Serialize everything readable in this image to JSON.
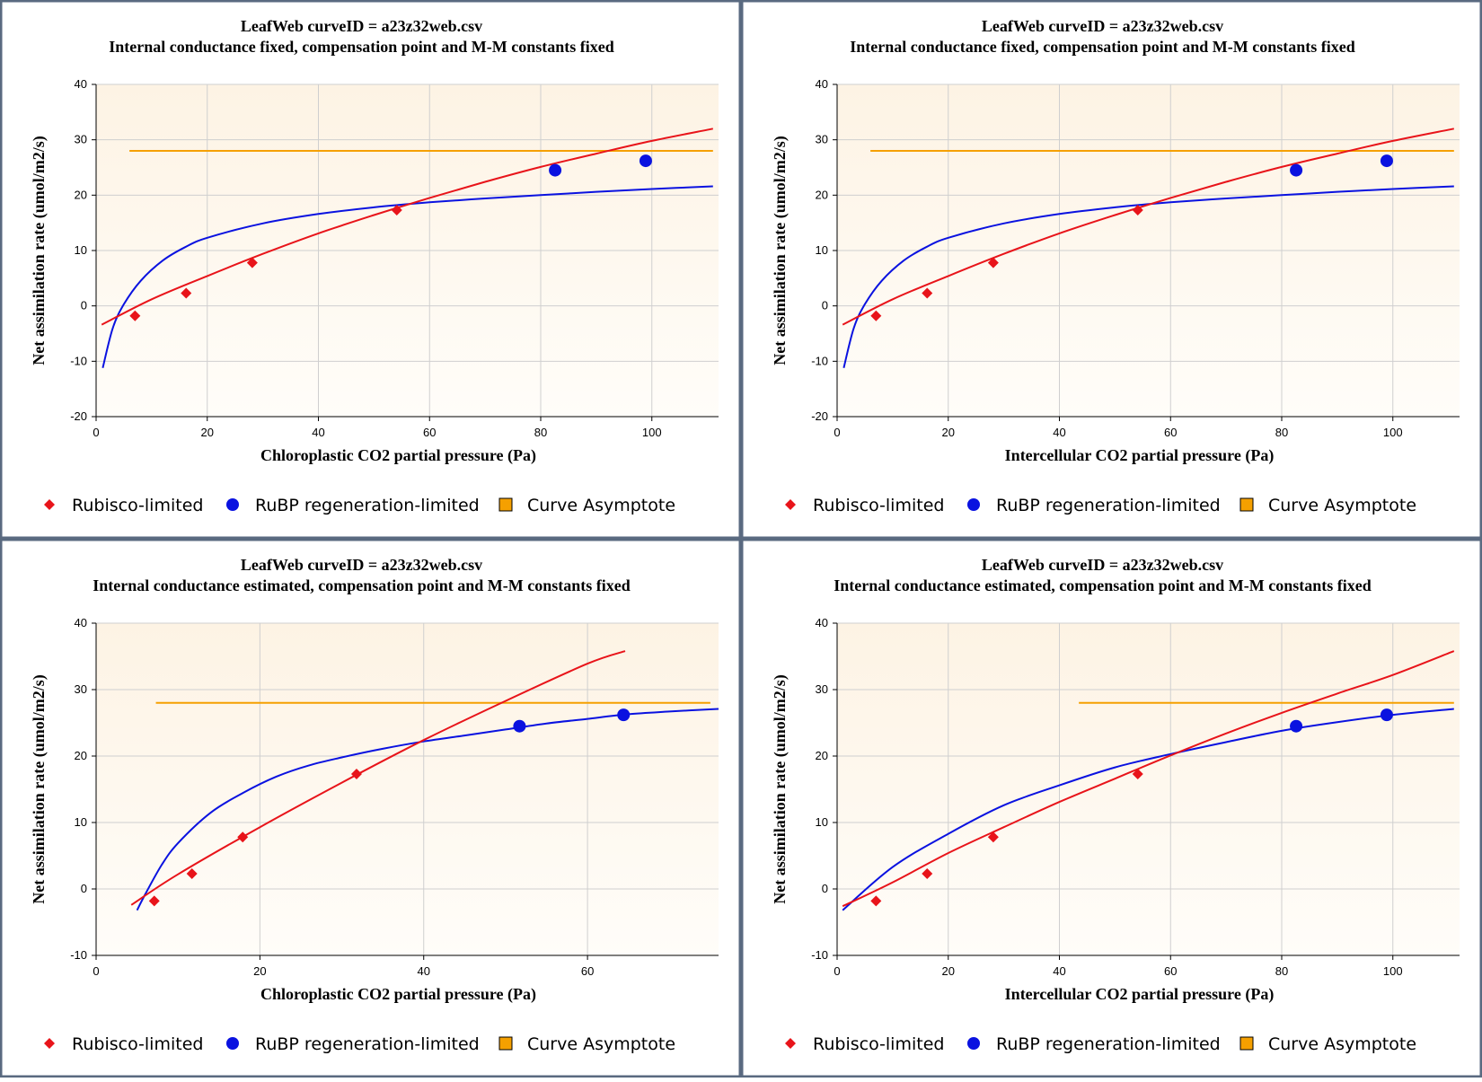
{
  "colors": {
    "border": "#5a6a80",
    "plot_bg_top": "#fdf3e4",
    "plot_bg_bottom": "#fffdf9",
    "grid": "#cfcfcf",
    "rubisco": "#e8141a",
    "rubp": "#0a12e0",
    "asymptote": "#f5a000"
  },
  "legend": {
    "rubisco": "Rubisco-limited",
    "rubp": "RuBP regeneration-limited",
    "asymptote": "Curve Asymptote"
  },
  "chart_data": [
    {
      "type": "scatter",
      "title": "LeafWeb curveID = a23z32web.csv",
      "subtitle": "Internal conductance fixed, compensation point and M-M constants fixed",
      "xlabel": "Chloroplastic CO2 partial pressure (Pa)",
      "ylabel": "Net assimilation rate (umol/m2/s)",
      "xlim": [
        0,
        112
      ],
      "ylim": [
        -20,
        40
      ],
      "xticks": [
        0,
        20,
        40,
        60,
        80,
        100
      ],
      "yticks": [
        -20,
        -10,
        0,
        10,
        20,
        30,
        40
      ],
      "rubisco_points": [
        [
          7,
          -1.8
        ],
        [
          16.2,
          2.3
        ],
        [
          28.1,
          7.8
        ],
        [
          54.1,
          17.3
        ]
      ],
      "rubp_points": [
        [
          82.6,
          24.5
        ],
        [
          98.9,
          26.2
        ]
      ],
      "rubisco_curve": [
        [
          1,
          -3.4
        ],
        [
          10,
          1.2
        ],
        [
          20,
          5.4
        ],
        [
          30,
          9.4
        ],
        [
          40,
          13.1
        ],
        [
          50,
          16.4
        ],
        [
          60,
          19.5
        ],
        [
          70,
          22.4
        ],
        [
          80,
          25.1
        ],
        [
          90,
          27.5
        ],
        [
          100,
          29.8
        ],
        [
          111,
          32.0
        ]
      ],
      "rubp_curve": [
        [
          1.2,
          -11.2
        ],
        [
          3,
          -4
        ],
        [
          5,
          0.3
        ],
        [
          8,
          4.5
        ],
        [
          12,
          8.2
        ],
        [
          16,
          10.6
        ],
        [
          20,
          12.3
        ],
        [
          30,
          14.9
        ],
        [
          40,
          16.6
        ],
        [
          50,
          17.8
        ],
        [
          60,
          18.7
        ],
        [
          70,
          19.4
        ],
        [
          80,
          20.0
        ],
        [
          90,
          20.6
        ],
        [
          100,
          21.1
        ],
        [
          111,
          21.6
        ]
      ],
      "asymptote": {
        "x": [
          6,
          111
        ],
        "y": 28
      }
    },
    {
      "type": "scatter",
      "title": "LeafWeb curveID = a23z32web.csv",
      "subtitle": "Internal conductance fixed, compensation point and M-M constants fixed",
      "xlabel": "Intercellular CO2 partial pressure (Pa)",
      "ylabel": "Net assimilation rate (umol/m2/s)",
      "xlim": [
        0,
        112
      ],
      "ylim": [
        -20,
        40
      ],
      "xticks": [
        0,
        20,
        40,
        60,
        80,
        100
      ],
      "yticks": [
        -20,
        -10,
        0,
        10,
        20,
        30,
        40
      ],
      "rubisco_points": [
        [
          7,
          -1.8
        ],
        [
          16.2,
          2.3
        ],
        [
          28.1,
          7.8
        ],
        [
          54.1,
          17.3
        ]
      ],
      "rubp_points": [
        [
          82.6,
          24.5
        ],
        [
          98.9,
          26.2
        ]
      ],
      "rubisco_curve": [
        [
          1,
          -3.4
        ],
        [
          10,
          1.2
        ],
        [
          20,
          5.4
        ],
        [
          30,
          9.4
        ],
        [
          40,
          13.1
        ],
        [
          50,
          16.4
        ],
        [
          60,
          19.5
        ],
        [
          70,
          22.4
        ],
        [
          80,
          25.1
        ],
        [
          90,
          27.5
        ],
        [
          100,
          29.8
        ],
        [
          111,
          32.0
        ]
      ],
      "rubp_curve": [
        [
          1.2,
          -11.2
        ],
        [
          3,
          -4
        ],
        [
          5,
          0.3
        ],
        [
          8,
          4.5
        ],
        [
          12,
          8.2
        ],
        [
          16,
          10.6
        ],
        [
          20,
          12.3
        ],
        [
          30,
          14.9
        ],
        [
          40,
          16.6
        ],
        [
          50,
          17.8
        ],
        [
          60,
          18.7
        ],
        [
          70,
          19.4
        ],
        [
          80,
          20.0
        ],
        [
          90,
          20.6
        ],
        [
          100,
          21.1
        ],
        [
          111,
          21.6
        ]
      ],
      "asymptote": {
        "x": [
          6,
          111
        ],
        "y": 28
      }
    },
    {
      "type": "scatter",
      "title": "LeafWeb curveID = a23z32web.csv",
      "subtitle": "Internal conductance estimated, compensation point and M-M constants fixed",
      "xlabel": "Chloroplastic CO2 partial pressure (Pa)",
      "ylabel": "Net assimilation rate (umol/m2/s)",
      "xlim": [
        0,
        76
      ],
      "ylim": [
        -10,
        40
      ],
      "xticks": [
        0,
        20,
        40,
        60
      ],
      "yticks": [
        -10,
        0,
        10,
        20,
        30,
        40
      ],
      "rubisco_points": [
        [
          7.1,
          -1.8
        ],
        [
          11.7,
          2.3
        ],
        [
          17.9,
          7.8
        ],
        [
          31.8,
          17.3
        ]
      ],
      "rubp_points": [
        [
          51.7,
          24.5
        ],
        [
          64.4,
          26.2
        ]
      ],
      "rubisco_curve": [
        [
          4.3,
          -2.4
        ],
        [
          10,
          2.2
        ],
        [
          20,
          9.3
        ],
        [
          30,
          16.0
        ],
        [
          40,
          22.4
        ],
        [
          50,
          28.3
        ],
        [
          60,
          33.9
        ],
        [
          64.6,
          35.8
        ]
      ],
      "rubp_curve": [
        [
          5,
          -3.2
        ],
        [
          6,
          -0.8
        ],
        [
          8,
          3.6
        ],
        [
          10,
          6.9
        ],
        [
          14,
          11.5
        ],
        [
          18,
          14.5
        ],
        [
          22,
          16.9
        ],
        [
          26,
          18.6
        ],
        [
          30,
          19.8
        ],
        [
          35,
          21.1
        ],
        [
          40,
          22.2
        ],
        [
          45,
          23.1
        ],
        [
          50,
          24.0
        ],
        [
          55,
          24.9
        ],
        [
          60,
          25.6
        ],
        [
          65,
          26.3
        ],
        [
          70,
          26.7
        ],
        [
          76,
          27.1
        ]
      ],
      "asymptote": {
        "x": [
          7.3,
          75
        ],
        "y": 28
      }
    },
    {
      "type": "scatter",
      "title": "LeafWeb curveID = a23z32web.csv",
      "subtitle": "Internal conductance estimated, compensation point and M-M constants fixed",
      "xlabel": "Intercellular CO2 partial pressure (Pa)",
      "ylabel": "Net assimilation rate (umol/m2/s)",
      "xlim": [
        0,
        112
      ],
      "ylim": [
        -10,
        40
      ],
      "xticks": [
        0,
        20,
        40,
        60,
        80,
        100
      ],
      "yticks": [
        -10,
        0,
        10,
        20,
        30,
        40
      ],
      "rubisco_points": [
        [
          7,
          -1.8
        ],
        [
          16.2,
          2.3
        ],
        [
          28.1,
          7.8
        ],
        [
          54.1,
          17.3
        ]
      ],
      "rubp_points": [
        [
          82.6,
          24.5
        ],
        [
          98.9,
          26.2
        ]
      ],
      "rubisco_curve": [
        [
          1,
          -2.6
        ],
        [
          10,
          1.0
        ],
        [
          20,
          5.4
        ],
        [
          30,
          9.3
        ],
        [
          40,
          13.1
        ],
        [
          50,
          16.6
        ],
        [
          60,
          20.1
        ],
        [
          70,
          23.4
        ],
        [
          80,
          26.5
        ],
        [
          90,
          29.4
        ],
        [
          100,
          32.2
        ],
        [
          111,
          35.8
        ]
      ],
      "rubp_curve": [
        [
          1,
          -3.2
        ],
        [
          10,
          3.3
        ],
        [
          20,
          8.3
        ],
        [
          30,
          12.6
        ],
        [
          40,
          15.6
        ],
        [
          50,
          18.3
        ],
        [
          60,
          20.3
        ],
        [
          70,
          22.1
        ],
        [
          80,
          23.8
        ],
        [
          90,
          25.1
        ],
        [
          100,
          26.2
        ],
        [
          111,
          27.1
        ]
      ],
      "asymptote": {
        "x": [
          43.5,
          111
        ],
        "y": 28
      }
    }
  ]
}
